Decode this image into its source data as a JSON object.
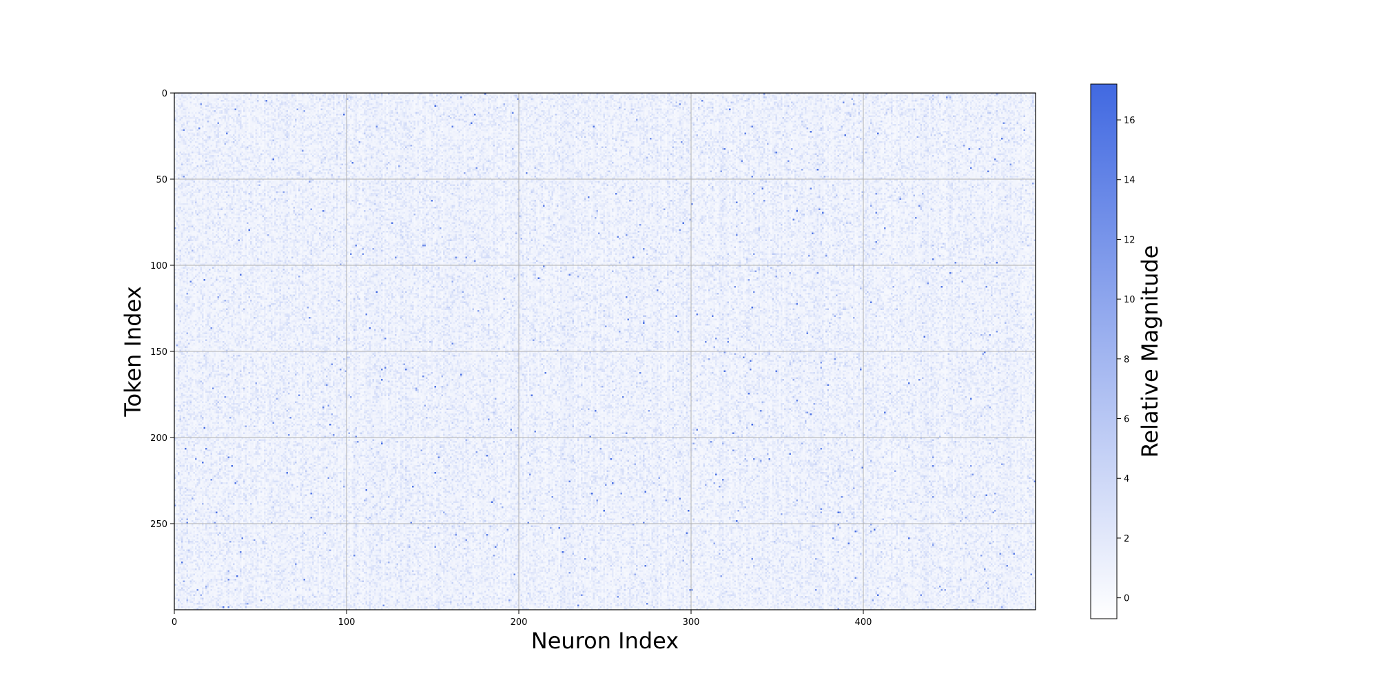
{
  "chart_data": {
    "type": "heatmap",
    "title": "",
    "xlabel": "Neuron Index",
    "ylabel": "Token Index",
    "x_range": [
      0,
      500
    ],
    "y_range": [
      0,
      300
    ],
    "y_inverted": true,
    "x_ticks": [
      0,
      100,
      200,
      300,
      400
    ],
    "y_ticks": [
      0,
      50,
      100,
      150,
      200,
      250
    ],
    "grid": true,
    "colorbar": {
      "label": "Relative Magnitude",
      "range": [
        -0.7,
        17.2
      ],
      "ticks": [
        0,
        2,
        4,
        6,
        8,
        10,
        12,
        14,
        16
      ],
      "color_low": "#ffffff",
      "color_high": "#4169e1"
    },
    "data_summary": {
      "rows": 300,
      "columns": 500,
      "typical_value_range": [
        0,
        3
      ],
      "sparse_outliers_range": [
        6,
        17
      ]
    },
    "colors": {
      "grid": "#b0b0b0",
      "axis": "#000000"
    }
  }
}
